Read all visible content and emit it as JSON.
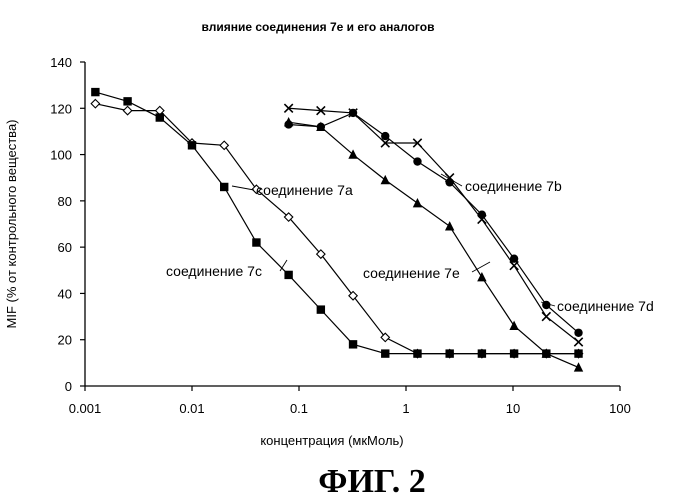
{
  "chart_data": {
    "type": "scatter",
    "title": "влияние соединения 7е и его аналогов",
    "xlabel": "концентрация (мкМоль)",
    "ylabel": "MIF (% от контрольного вещества)",
    "x_scale": "log",
    "xlim": [
      0.001,
      100
    ],
    "ylim": [
      0,
      140
    ],
    "x_ticks": [
      "0.001",
      "0.01",
      "0.1",
      "1",
      "10",
      "100"
    ],
    "y_ticks": [
      "0",
      "20",
      "40",
      "60",
      "80",
      "100",
      "120",
      "140"
    ],
    "grid": false,
    "series": [
      {
        "name": "соединение 7a",
        "marker": "diamond-open",
        "x": [
          0.00125,
          0.0025,
          0.005,
          0.01,
          0.02,
          0.04,
          0.08,
          0.16,
          0.32,
          0.64,
          1.28,
          2.56,
          5.12,
          10.24,
          20.48,
          40.96
        ],
        "y": [
          122,
          119,
          119,
          105,
          104,
          85,
          73,
          57,
          39,
          21,
          14,
          14,
          14,
          14,
          14,
          14
        ]
      },
      {
        "name": "соединение 7c",
        "marker": "square",
        "x": [
          0.00125,
          0.0025,
          0.005,
          0.01,
          0.02,
          0.04,
          0.08,
          0.16,
          0.32,
          0.64,
          1.28,
          2.56,
          5.12,
          10.24,
          20.48,
          40.96
        ],
        "y": [
          127,
          123,
          116,
          104,
          86,
          62,
          48,
          33,
          18,
          14,
          14,
          14,
          14,
          14,
          14,
          14
        ]
      },
      {
        "name": "соединение 7e",
        "marker": "triangle",
        "x": [
          0.08,
          0.16,
          0.32,
          0.64,
          1.28,
          2.56,
          5.12,
          10.24,
          20.48,
          40.96
        ],
        "y": [
          114,
          112,
          100,
          89,
          79,
          69,
          47,
          26,
          14,
          8
        ]
      },
      {
        "name": "соединение 7b",
        "marker": "x",
        "x": [
          0.08,
          0.16,
          0.32,
          0.64,
          1.28,
          2.56,
          5.12,
          10.24,
          20.48,
          40.96
        ],
        "y": [
          120,
          119,
          118,
          105,
          105,
          90,
          72,
          52,
          30,
          19
        ]
      },
      {
        "name": "соединение 7d",
        "marker": "circle",
        "x": [
          0.08,
          0.16,
          0.32,
          0.64,
          1.28,
          2.56,
          5.12,
          10.24,
          20.48,
          40.96
        ],
        "y": [
          113,
          112,
          118,
          108,
          97,
          88,
          74,
          55,
          35,
          23
        ]
      }
    ],
    "annotations": [
      {
        "text": "соединение 7a",
        "series": "соединение 7a"
      },
      {
        "text": "соединение 7b",
        "series": "соединение 7b"
      },
      {
        "text": "соединение 7c",
        "series": "соединение 7c"
      },
      {
        "text": "соединение 7e",
        "series": "соединение 7e"
      },
      {
        "text": "соединение 7d",
        "series": "соединение 7d"
      }
    ]
  },
  "figure_label": "ФИГ. 2"
}
